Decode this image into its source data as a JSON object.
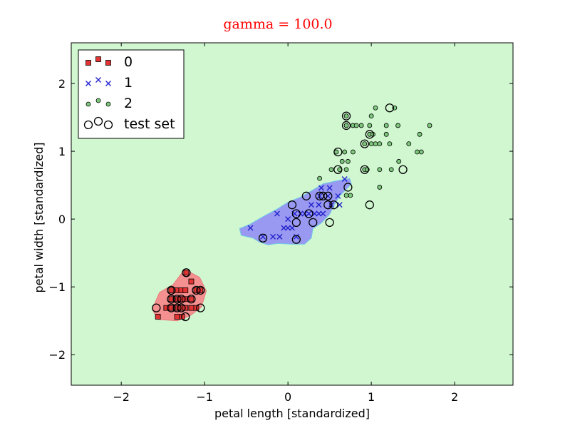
{
  "chart_data": {
    "type": "scatter",
    "title": "gamma = 100.0",
    "xlabel": "petal length [standardized]",
    "ylabel": "petal width [standardized]",
    "xlim": [
      -2.6,
      2.7
    ],
    "ylim": [
      -2.45,
      2.6
    ],
    "xticks": [
      -2,
      -1,
      0,
      1,
      2
    ],
    "xtick_labels": [
      "−2",
      "−1",
      "0",
      "1",
      "2"
    ],
    "yticks": [
      -2,
      -1,
      0,
      1,
      2
    ],
    "ytick_labels": [
      "−2",
      "−1",
      "0",
      "1",
      "2"
    ],
    "grid": false,
    "legend_position": "top-left",
    "colors": {
      "background_region": "#d1f7d1",
      "class0_region": "#f49090",
      "class1_region": "#9999f2",
      "class0_marker": "#e33434",
      "class1_marker": "#2222cc",
      "class2_marker": "#7ec87e",
      "title": "#ff0000"
    },
    "decision_regions": [
      {
        "class": "0",
        "polygon": [
          [
            -1.63,
            -1.33
          ],
          [
            -1.54,
            -1.08
          ],
          [
            -1.38,
            -0.97
          ],
          [
            -1.24,
            -0.74
          ],
          [
            -1.06,
            -0.86
          ],
          [
            -0.98,
            -1.06
          ],
          [
            -1.04,
            -1.3
          ],
          [
            -1.18,
            -1.43
          ],
          [
            -1.33,
            -1.5
          ],
          [
            -1.56,
            -1.48
          ]
        ]
      },
      {
        "class": "1",
        "polygon": [
          [
            -0.58,
            -0.14
          ],
          [
            -0.46,
            -0.08
          ],
          [
            -0.28,
            0.05
          ],
          [
            -0.14,
            0.14
          ],
          [
            0.0,
            0.25
          ],
          [
            0.16,
            0.33
          ],
          [
            0.3,
            0.43
          ],
          [
            0.42,
            0.52
          ],
          [
            0.57,
            0.56
          ],
          [
            0.74,
            0.6
          ],
          [
            0.76,
            0.52
          ],
          [
            0.7,
            0.44
          ],
          [
            0.62,
            0.34
          ],
          [
            0.56,
            0.22
          ],
          [
            0.5,
            0.07
          ],
          [
            0.4,
            -0.06
          ],
          [
            0.3,
            -0.14
          ],
          [
            0.28,
            -0.28
          ],
          [
            0.2,
            -0.37
          ],
          [
            0.04,
            -0.37
          ],
          [
            -0.12,
            -0.36
          ],
          [
            -0.24,
            -0.38
          ],
          [
            -0.34,
            -0.34
          ],
          [
            -0.42,
            -0.28
          ],
          [
            -0.56,
            -0.24
          ]
        ]
      }
    ],
    "series": [
      {
        "name": "0",
        "marker": "square",
        "points": [
          [
            -1.56,
            -1.44
          ],
          [
            -1.46,
            -1.31
          ],
          [
            -1.4,
            -1.31
          ],
          [
            -1.4,
            -1.18
          ],
          [
            -1.4,
            -1.05
          ],
          [
            -1.33,
            -1.44
          ],
          [
            -1.33,
            -1.31
          ],
          [
            -1.33,
            -1.18
          ],
          [
            -1.33,
            -1.05
          ],
          [
            -1.28,
            -1.31
          ],
          [
            -1.28,
            -1.18
          ],
          [
            -1.28,
            -1.05
          ],
          [
            -1.27,
            -1.44
          ],
          [
            -1.23,
            -1.31
          ],
          [
            -1.23,
            -1.18
          ],
          [
            -1.23,
            -1.05
          ],
          [
            -1.22,
            -0.79
          ],
          [
            -1.16,
            -1.31
          ],
          [
            -1.16,
            -1.18
          ],
          [
            -1.16,
            -0.92
          ],
          [
            -1.1,
            -1.31
          ],
          [
            -1.1,
            -1.05
          ],
          [
            -1.05,
            -1.05
          ]
        ]
      },
      {
        "name": "1",
        "marker": "x",
        "points": [
          [
            -0.45,
            -0.13
          ],
          [
            -0.3,
            -0.26
          ],
          [
            -0.18,
            -0.26
          ],
          [
            -0.13,
            0.08
          ],
          [
            -0.1,
            -0.26
          ],
          [
            -0.05,
            -0.13
          ],
          [
            0.0,
            0.0
          ],
          [
            0.0,
            -0.13
          ],
          [
            0.05,
            -0.13
          ],
          [
            0.08,
            0.08
          ],
          [
            0.1,
            -0.26
          ],
          [
            0.15,
            0.08
          ],
          [
            0.2,
            0.08
          ],
          [
            0.25,
            0.08
          ],
          [
            0.28,
            0.21
          ],
          [
            0.32,
            0.08
          ],
          [
            0.37,
            0.08
          ],
          [
            0.37,
            0.21
          ],
          [
            0.38,
            0.34
          ],
          [
            0.4,
            0.46
          ],
          [
            0.42,
            0.08
          ],
          [
            0.48,
            0.34
          ],
          [
            0.5,
            0.46
          ],
          [
            0.52,
            0.21
          ],
          [
            0.6,
            0.34
          ],
          [
            0.62,
            0.21
          ],
          [
            0.68,
            0.59
          ]
        ]
      },
      {
        "name": "2",
        "marker": "circle",
        "points": [
          [
            0.38,
            0.6
          ],
          [
            0.52,
            0.73
          ],
          [
            0.58,
            0.99
          ],
          [
            0.62,
            0.73
          ],
          [
            0.65,
            0.85
          ],
          [
            0.68,
            0.99
          ],
          [
            0.7,
            0.73
          ],
          [
            0.7,
            0.35
          ],
          [
            0.7,
            1.38
          ],
          [
            0.7,
            1.52
          ],
          [
            0.72,
            0.85
          ],
          [
            0.75,
            0.35
          ],
          [
            0.78,
            0.99
          ],
          [
            0.78,
            1.38
          ],
          [
            0.82,
            1.38
          ],
          [
            0.88,
            1.38
          ],
          [
            0.92,
            0.73
          ],
          [
            0.92,
            1.11
          ],
          [
            0.95,
            0.73
          ],
          [
            0.98,
            1.38
          ],
          [
            0.98,
            1.25
          ],
          [
            1.0,
            1.11
          ],
          [
            1.0,
            1.52
          ],
          [
            1.02,
            1.25
          ],
          [
            1.05,
            1.64
          ],
          [
            1.05,
            1.11
          ],
          [
            1.1,
            0.73
          ],
          [
            1.1,
            0.47
          ],
          [
            1.1,
            1.11
          ],
          [
            1.18,
            1.38
          ],
          [
            1.18,
            1.25
          ],
          [
            1.22,
            1.11
          ],
          [
            1.24,
            0.73
          ],
          [
            1.28,
            1.64
          ],
          [
            1.32,
            1.38
          ],
          [
            1.33,
            0.85
          ],
          [
            1.45,
            1.11
          ],
          [
            1.55,
            0.99
          ],
          [
            1.58,
            1.25
          ],
          [
            1.6,
            0.99
          ],
          [
            1.7,
            1.38
          ]
        ]
      },
      {
        "name": "test set",
        "marker": "open-circle",
        "points": [
          [
            -1.58,
            -1.31
          ],
          [
            -1.4,
            -1.31
          ],
          [
            -1.4,
            -1.18
          ],
          [
            -1.4,
            -1.05
          ],
          [
            -1.33,
            -1.18
          ],
          [
            -1.33,
            -1.31
          ],
          [
            -1.28,
            -1.31
          ],
          [
            -1.28,
            -1.18
          ],
          [
            -1.23,
            -1.44
          ],
          [
            -1.22,
            -0.79
          ],
          [
            -1.16,
            -1.18
          ],
          [
            -1.1,
            -1.05
          ],
          [
            -1.05,
            -1.05
          ],
          [
            -1.05,
            -1.31
          ],
          [
            -0.3,
            -0.28
          ],
          [
            0.05,
            0.21
          ],
          [
            0.1,
            0.08
          ],
          [
            0.1,
            -0.05
          ],
          [
            0.1,
            -0.3
          ],
          [
            0.22,
            0.34
          ],
          [
            0.25,
            0.08
          ],
          [
            0.3,
            -0.05
          ],
          [
            0.38,
            0.34
          ],
          [
            0.42,
            0.34
          ],
          [
            0.48,
            0.34
          ],
          [
            0.48,
            0.21
          ],
          [
            0.5,
            -0.05
          ],
          [
            0.55,
            0.21
          ],
          [
            0.6,
            0.73
          ],
          [
            0.6,
            0.99
          ],
          [
            0.7,
            1.38
          ],
          [
            0.7,
            1.52
          ],
          [
            0.72,
            0.47
          ],
          [
            0.92,
            1.11
          ],
          [
            0.92,
            0.73
          ],
          [
            0.98,
            1.25
          ],
          [
            0.98,
            0.21
          ],
          [
            1.22,
            1.64
          ],
          [
            1.38,
            0.73
          ]
        ]
      }
    ]
  }
}
